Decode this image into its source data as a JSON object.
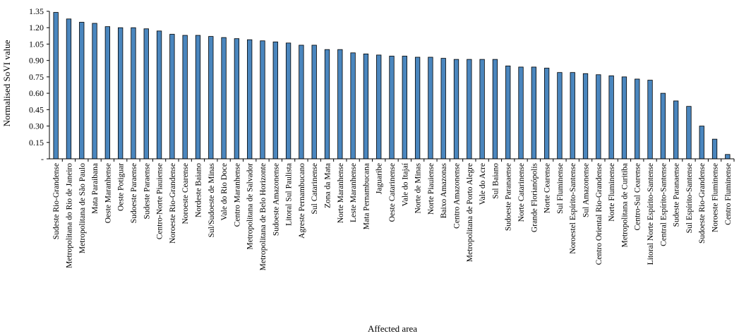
{
  "chart_data": {
    "type": "bar",
    "xlabel": "Affected area",
    "ylabel": "Normalised SoVI value",
    "ylim": [
      0,
      1.35
    ],
    "yticks": [
      0,
      0.15,
      0.3,
      0.45,
      0.6,
      0.75,
      0.9,
      1.05,
      1.2,
      1.35
    ],
    "ytick_labels": [
      "-",
      "0.15",
      "0.30",
      "0.45",
      "0.60",
      "0.75",
      "0.90",
      "1.05",
      "1.20",
      "1.35"
    ],
    "grid": "none",
    "bar_color": "#4a86be",
    "bar_stroke": "#000000",
    "categories": [
      "Sudeste Rio-Grandense",
      "Metropolitana do Rio de Janeiro",
      "Metropolitana de São Paulo",
      "Mata Paraibana",
      "Oeste Maranhense",
      "Oeste Potiguar",
      "Sudoeste Paraense",
      "Sudeste Paraense",
      "Centro-Norte Piauiense",
      "Noroeste Rio-Grandense",
      "Noroeste Cearense",
      "Nordeste Baiano",
      "Sul/Sudoeste de Minas",
      "Vale do Rio Doce",
      "Centro Maranhense",
      "Metropolitana de Salvador",
      "Metropolitana de Belo Horizonte",
      "Sudoeste Amazonense",
      "Litoral Sul Paulista",
      "Agreste Pernambucano",
      "Sul Catarinense",
      "Zona da Mata",
      "Norte Maranhense",
      "Leste Maranhense",
      "Mata Pernambucana",
      "Jaguaribe",
      "Oeste Catarinense",
      "Vale do Itajaí",
      "Norte de Minas",
      "Norte Piauiense",
      "Baixo Amazonas",
      "Centro Amazonense",
      "Metropolitana de Porto Alegre",
      "Vale do Acre",
      "Sul Baiano",
      "Sudoeste Paranaense",
      "Norte Catarinense",
      "Grande Florianópolis",
      "Norte Cearense",
      "Sul Fluminense",
      "Noroestel Espírito-Santense",
      "Sul Amazonense",
      "Centro Oriental Rio-Grandense",
      "Norte Fluminense",
      "Metropolitana de Curitiba",
      "Centro-Sul Cearense",
      "Litoral Norte Espírito-Santense",
      "Central Espírito-Santense",
      "Sudeste Paranaense",
      "Sul Espírito-Santense",
      "Sudoeste Rio-Grandense",
      "Noroeste Fluminense",
      "Centro Fluminense"
    ],
    "values": [
      1.34,
      1.28,
      1.25,
      1.24,
      1.21,
      1.2,
      1.2,
      1.19,
      1.17,
      1.14,
      1.13,
      1.13,
      1.12,
      1.11,
      1.1,
      1.09,
      1.08,
      1.07,
      1.06,
      1.04,
      1.04,
      1.0,
      1.0,
      0.97,
      0.96,
      0.95,
      0.94,
      0.94,
      0.93,
      0.93,
      0.92,
      0.91,
      0.91,
      0.91,
      0.91,
      0.85,
      0.84,
      0.84,
      0.83,
      0.79,
      0.79,
      0.78,
      0.77,
      0.76,
      0.75,
      0.73,
      0.72,
      0.6,
      0.53,
      0.48,
      0.3,
      0.18,
      0.04
    ]
  }
}
